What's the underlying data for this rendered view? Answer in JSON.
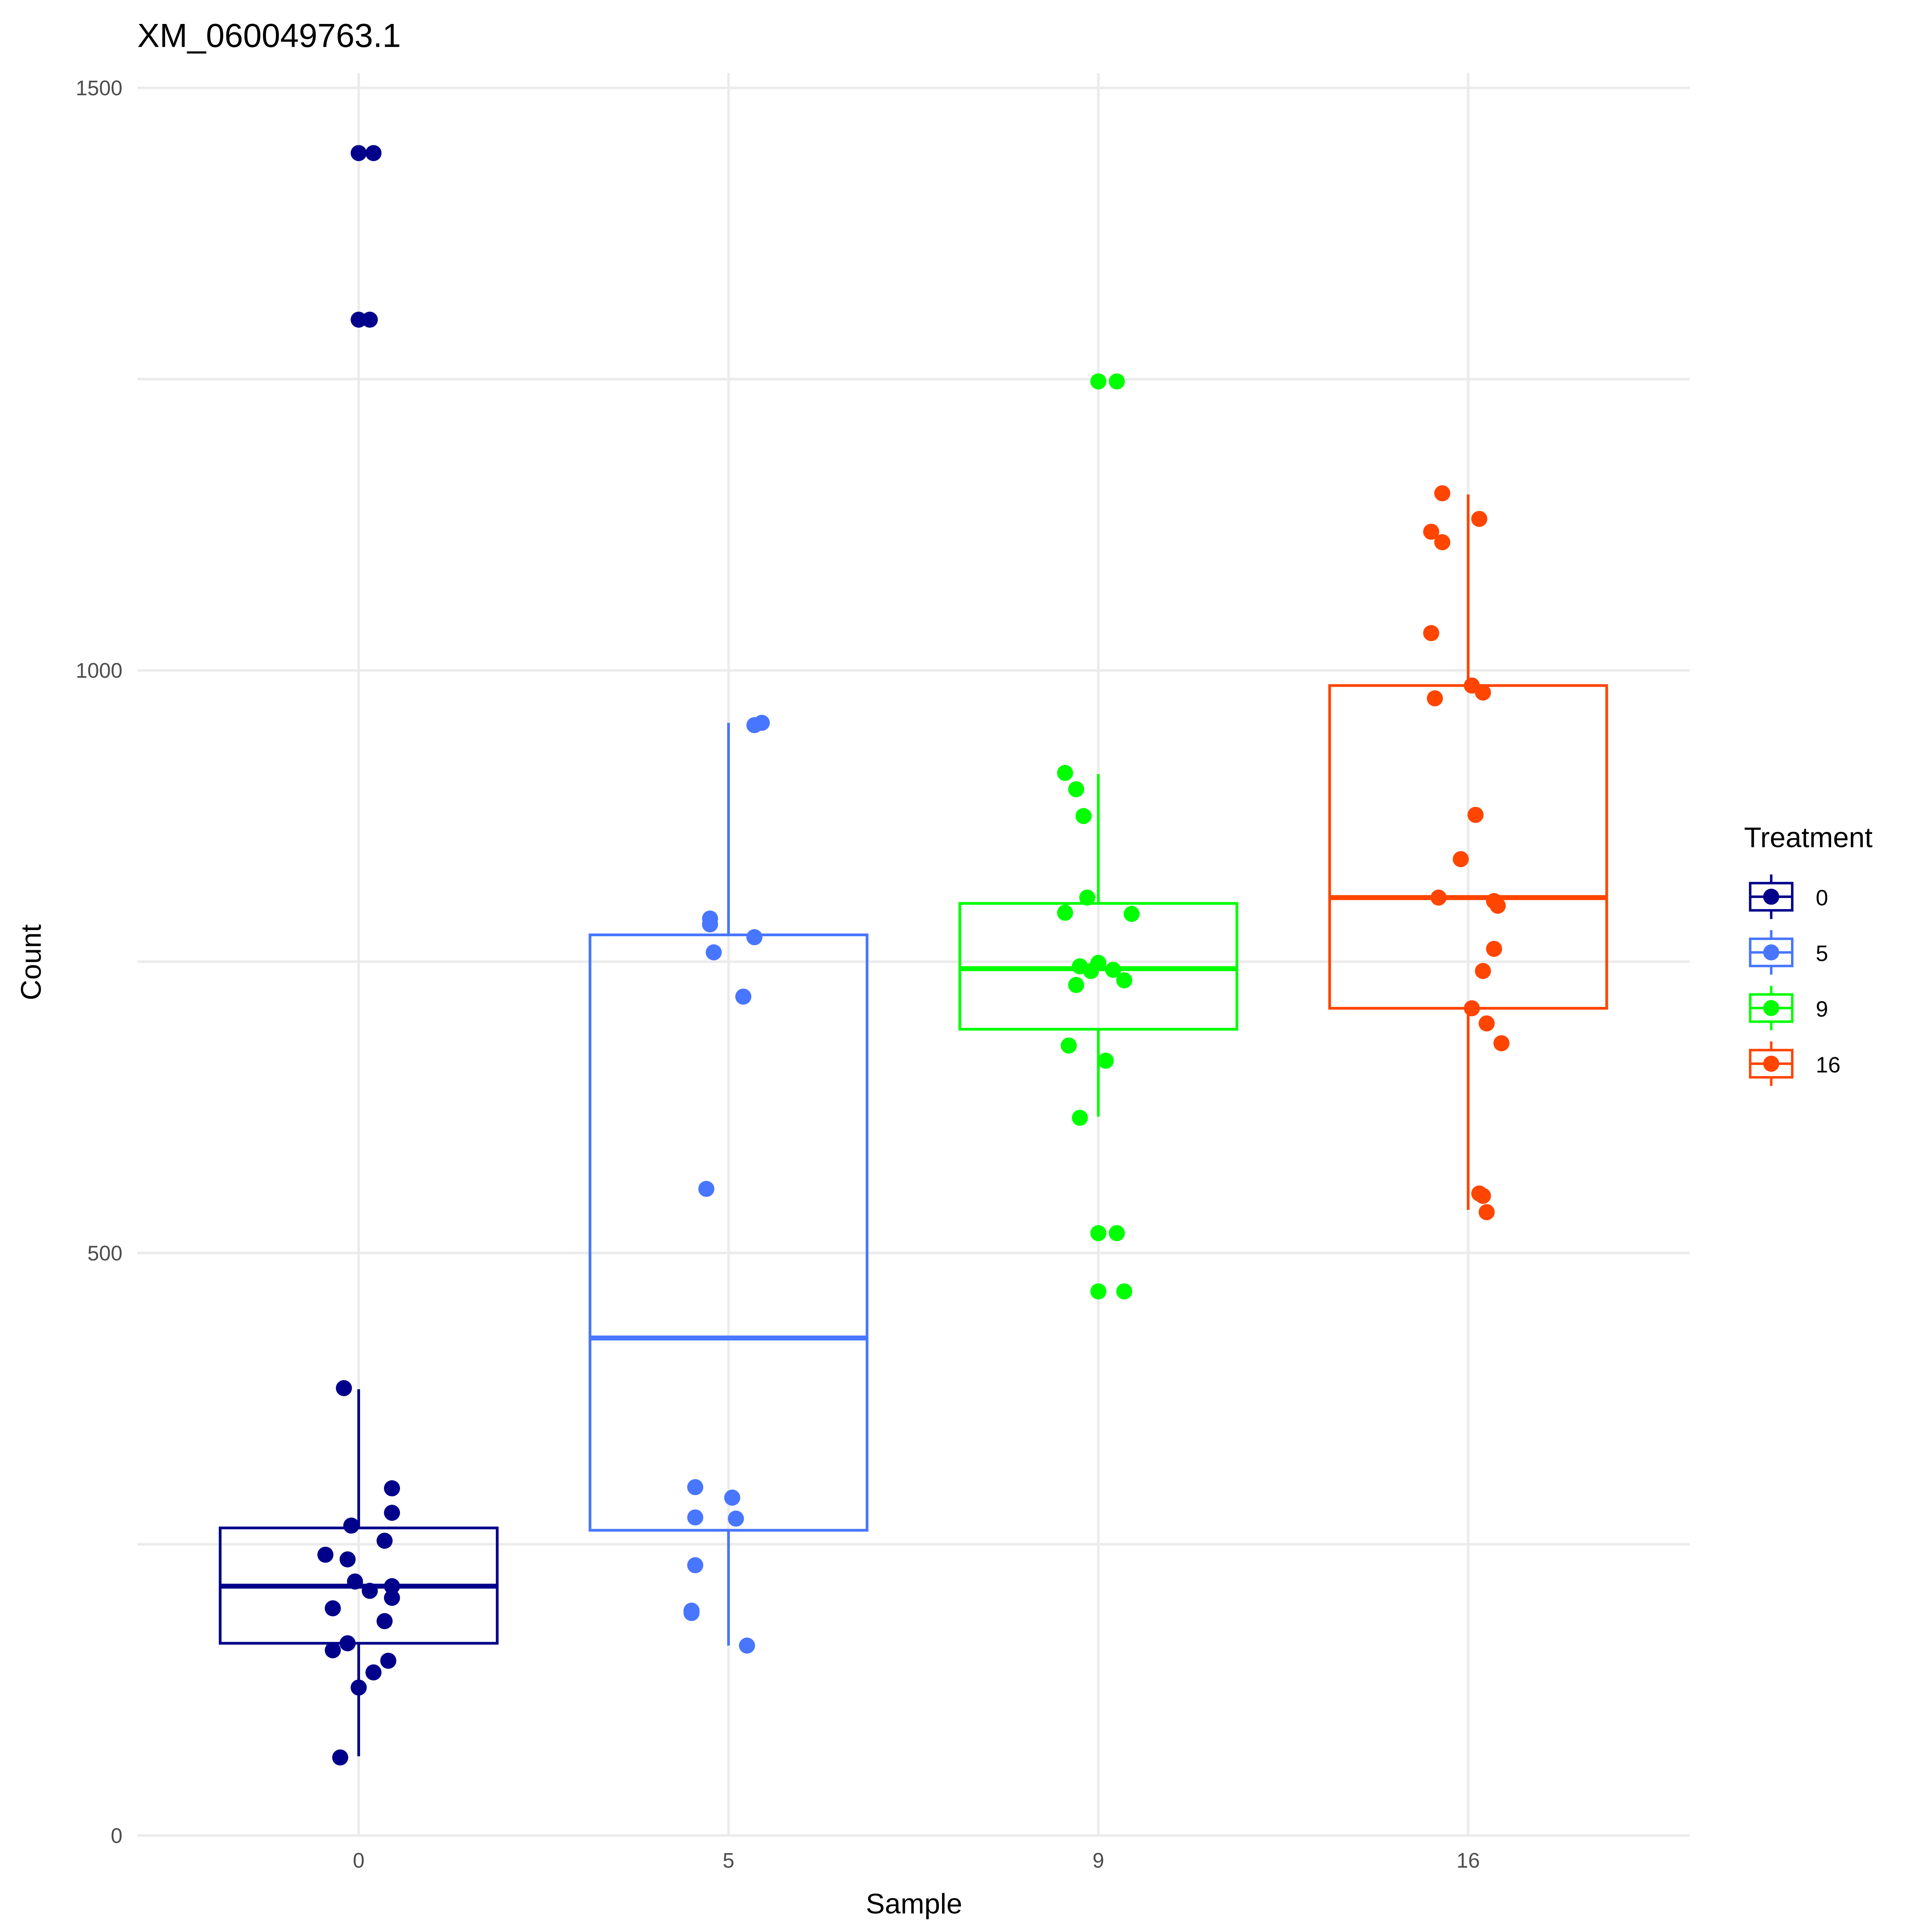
{
  "chart_data": {
    "type": "box",
    "title": "XM_060049763.1",
    "xlabel": "Sample",
    "ylabel": "Count",
    "ylim": [
      0,
      1500
    ],
    "yticks": [
      0,
      500,
      1000,
      1500
    ],
    "categories": [
      "0",
      "5",
      "9",
      "16"
    ],
    "grid": true,
    "legend": {
      "title": "Treatment",
      "position": "right",
      "entries": [
        "0",
        "5",
        "9",
        "16"
      ]
    },
    "colors": [
      "#00008B",
      "#4876FF",
      "#00FF00",
      "#FF4500"
    ],
    "boxes": [
      {
        "lower": 68,
        "q1": 165,
        "median": 214,
        "q3": 264,
        "upper": 383
      },
      {
        "lower": 163,
        "q1": 262,
        "median": 427,
        "q3": 773,
        "upper": 955
      },
      {
        "lower": 617,
        "q1": 692,
        "median": 744,
        "q3": 800,
        "upper": 911
      },
      {
        "lower": 537,
        "q1": 710,
        "median": 805,
        "q3": 987,
        "upper": 1151
      }
    ],
    "points": [
      [
        [
          0,
          1444
        ],
        [
          0.04,
          1444
        ],
        [
          0,
          1301
        ],
        [
          0.03,
          1301
        ],
        [
          -0.04,
          384
        ],
        [
          0.09,
          298
        ],
        [
          0.09,
          277
        ],
        [
          -0.02,
          266
        ],
        [
          0.07,
          253
        ],
        [
          -0.09,
          241
        ],
        [
          -0.03,
          237
        ],
        [
          -0.01,
          218
        ],
        [
          0.09,
          214
        ],
        [
          0.03,
          210
        ],
        [
          0.09,
          204
        ],
        [
          -0.07,
          195
        ],
        [
          0.07,
          184
        ],
        [
          -0.03,
          165
        ],
        [
          -0.07,
          159
        ],
        [
          0.08,
          150
        ],
        [
          0.04,
          140
        ],
        [
          0,
          127
        ],
        [
          -0.05,
          67
        ]
      ],
      [
        [
          0.09,
          955
        ],
        [
          0.07,
          953
        ],
        [
          -0.05,
          787
        ],
        [
          -0.05,
          782
        ],
        [
          0.07,
          771
        ],
        [
          -0.04,
          758
        ],
        [
          0.04,
          720
        ],
        [
          -0.06,
          555
        ],
        [
          -0.09,
          299
        ],
        [
          0.01,
          290
        ],
        [
          -0.09,
          273
        ],
        [
          0.02,
          272
        ],
        [
          -0.09,
          232
        ],
        [
          -0.1,
          193
        ],
        [
          -0.1,
          191
        ],
        [
          0.05,
          163
        ]
      ],
      [
        [
          0,
          1248
        ],
        [
          0.05,
          1248
        ],
        [
          -0.09,
          912
        ],
        [
          -0.06,
          898
        ],
        [
          -0.04,
          875
        ],
        [
          -0.03,
          805
        ],
        [
          -0.09,
          792
        ],
        [
          0.09,
          791
        ],
        [
          0,
          749
        ],
        [
          -0.05,
          746
        ],
        [
          0.04,
          743
        ],
        [
          -0.02,
          742
        ],
        [
          0.07,
          734
        ],
        [
          -0.06,
          730
        ],
        [
          -0.08,
          678
        ],
        [
          0.02,
          665
        ],
        [
          -0.05,
          616
        ],
        [
          0,
          517
        ],
        [
          0.05,
          517
        ],
        [
          0,
          467
        ],
        [
          0.07,
          467
        ]
      ],
      [
        [
          -0.07,
          1152
        ],
        [
          0.03,
          1130
        ],
        [
          -0.1,
          1119
        ],
        [
          -0.07,
          1110
        ],
        [
          -0.1,
          1032
        ],
        [
          0.01,
          987
        ],
        [
          0.04,
          981
        ],
        [
          -0.09,
          976
        ],
        [
          0.02,
          876
        ],
        [
          -0.02,
          838
        ],
        [
          -0.08,
          805
        ],
        [
          0.07,
          802
        ],
        [
          0.08,
          798
        ],
        [
          0.07,
          761
        ],
        [
          0.04,
          742
        ],
        [
          0.01,
          710
        ],
        [
          0.05,
          697
        ],
        [
          0.09,
          680
        ],
        [
          0.03,
          551
        ],
        [
          0.04,
          549
        ],
        [
          0.05,
          535
        ]
      ]
    ]
  }
}
